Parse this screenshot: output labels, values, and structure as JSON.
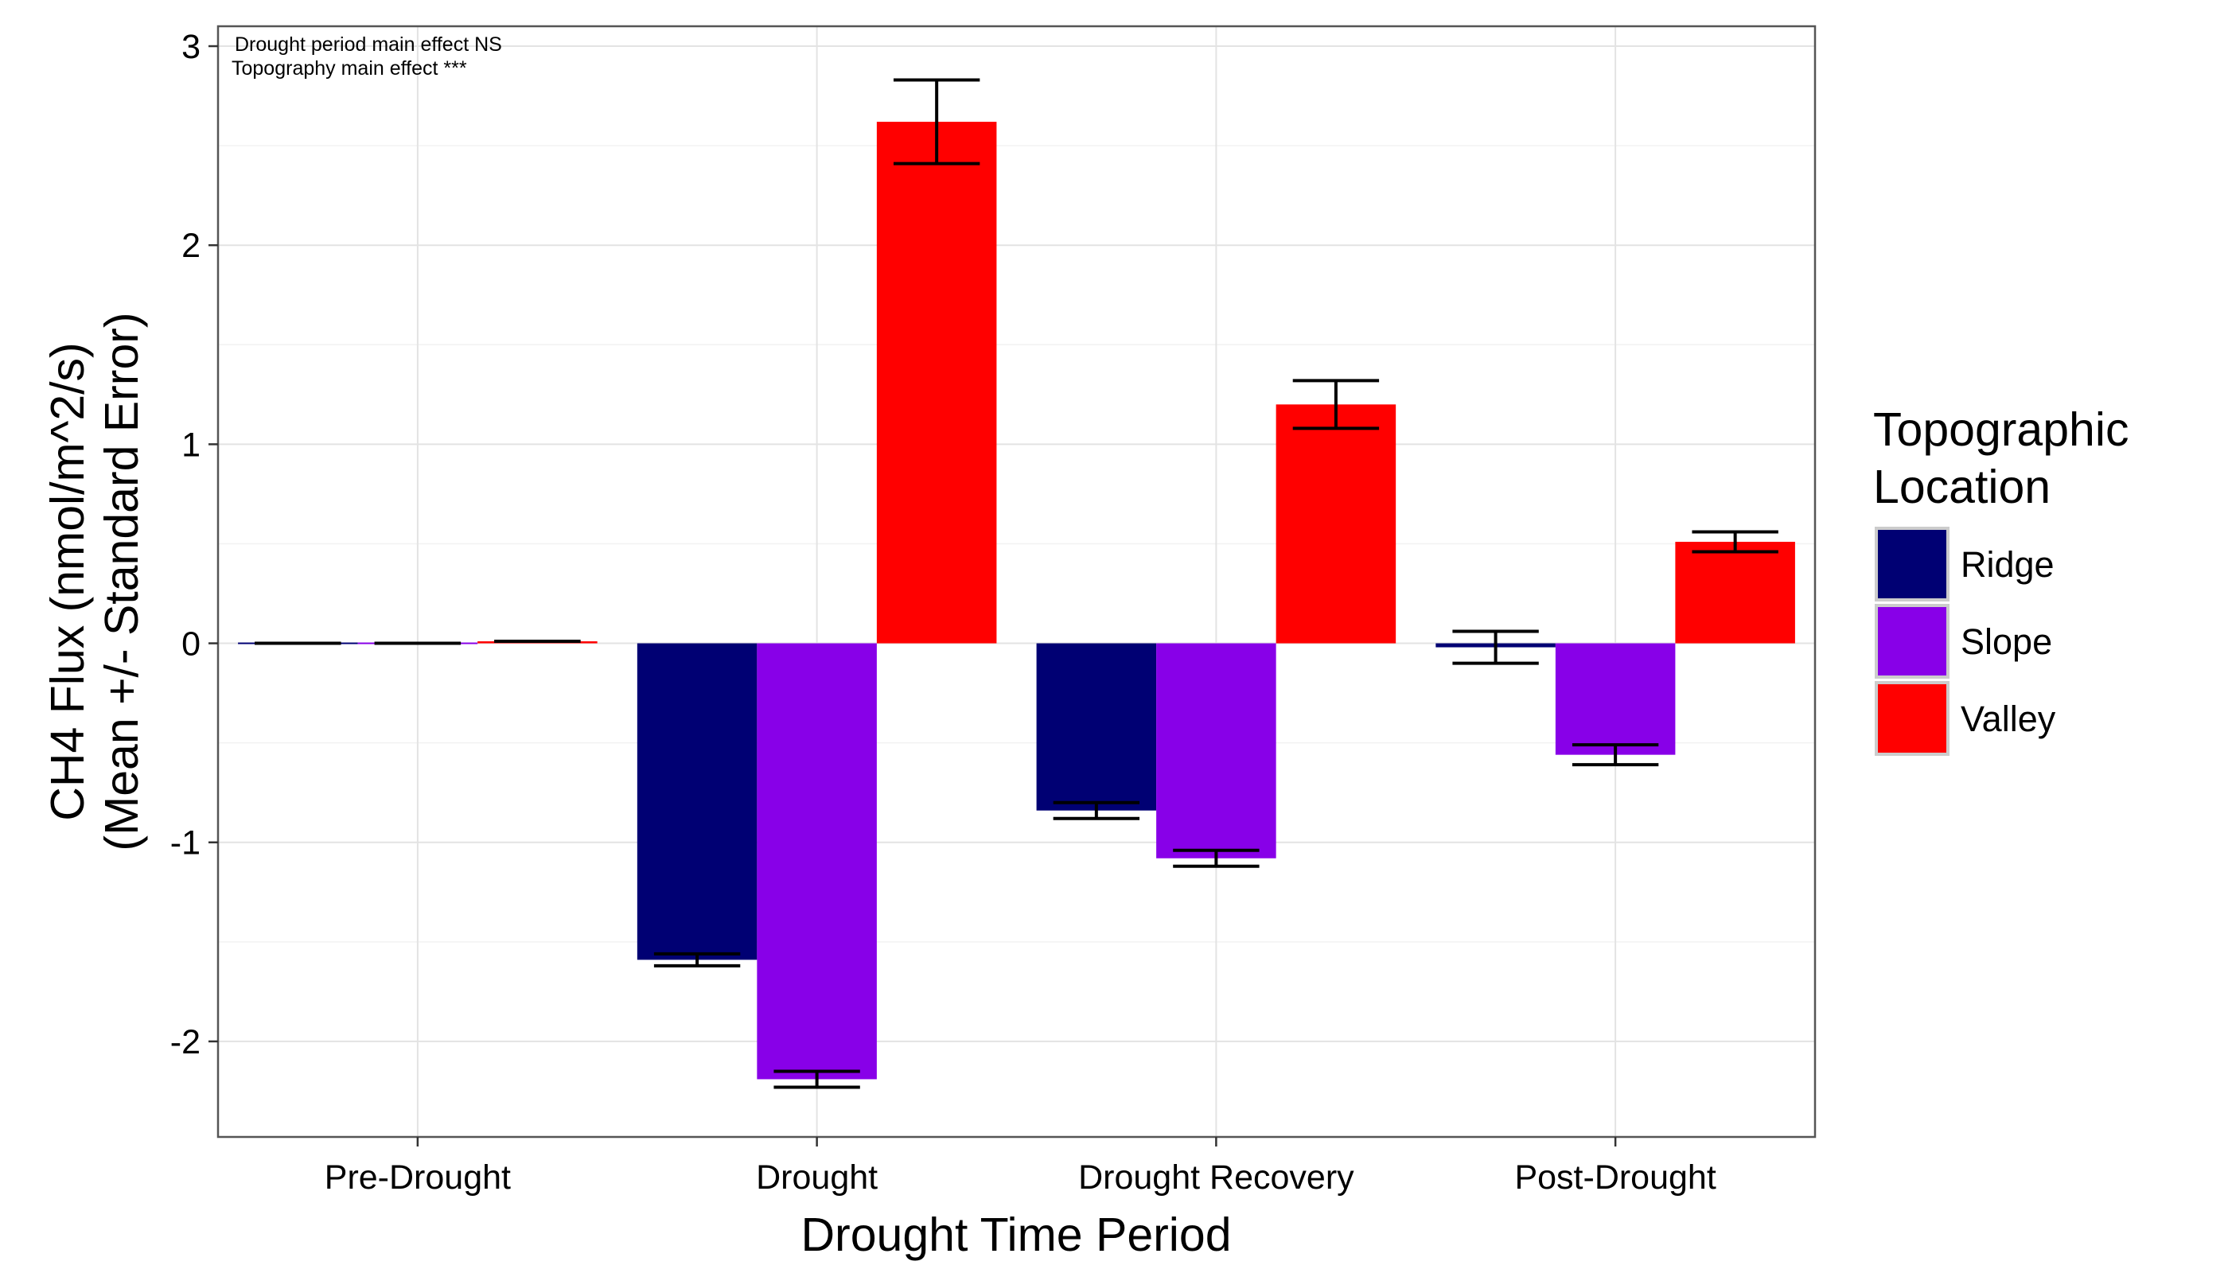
{
  "chart_data": {
    "type": "bar",
    "title": "",
    "xlabel": "Drought Time Period",
    "ylabel_line1": "CH4 Flux (nmol/m^2/s)",
    "ylabel_line2": "(Mean +/- Standard Error)",
    "categories": [
      "Pre-Drought",
      "Drought",
      "Drought Recovery",
      "Post-Drought"
    ],
    "ylim": [
      -2.48,
      3.1
    ],
    "yticks": [
      -2,
      -1,
      0,
      1,
      2,
      3
    ],
    "ytick_labels": [
      "-2",
      "-1",
      "0",
      "1",
      "2",
      "3"
    ],
    "grid": true,
    "annotations": [
      "Drought period main effect  NS",
      "Topography main effect  ***"
    ],
    "legend": {
      "title_line1": "Topographic",
      "title_line2": "Location",
      "placement": "right"
    },
    "series": [
      {
        "name": "Ridge",
        "color": "#000073",
        "values": [
          0.0,
          -1.59,
          -0.84,
          -0.02
        ],
        "se": [
          0.0,
          0.03,
          0.04,
          0.08
        ]
      },
      {
        "name": "Slope",
        "color": "#8800E8",
        "values": [
          0.0,
          -2.19,
          -1.08,
          -0.56
        ],
        "se": [
          0.0,
          0.04,
          0.04,
          0.05
        ]
      },
      {
        "name": "Valley",
        "color": "#FF0000",
        "values": [
          0.01,
          2.62,
          1.2,
          0.51
        ],
        "se": [
          0.0,
          0.21,
          0.12,
          0.05
        ]
      }
    ]
  }
}
